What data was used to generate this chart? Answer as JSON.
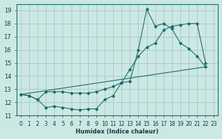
{
  "xlabel": "Humidex (Indice chaleur)",
  "bg_color": "#cce8e4",
  "grid_color": "#aacccc",
  "line_color": "#1a6b6b",
  "xlim": [
    -0.5,
    23.5
  ],
  "ylim": [
    11,
    19.5
  ],
  "yticks": [
    11,
    12,
    13,
    14,
    15,
    16,
    17,
    18,
    19
  ],
  "xticks": [
    0,
    1,
    2,
    3,
    4,
    5,
    6,
    7,
    8,
    9,
    10,
    11,
    12,
    13,
    14,
    15,
    16,
    17,
    18,
    19,
    20,
    21,
    22,
    23
  ],
  "series1_x": [
    0,
    1,
    2,
    3,
    4,
    5,
    6,
    7,
    8,
    9,
    10,
    11,
    12,
    13,
    14,
    15,
    16,
    17,
    18,
    19,
    20,
    21,
    22
  ],
  "series1_y": [
    12.6,
    12.5,
    12.2,
    11.6,
    11.7,
    11.6,
    11.5,
    11.4,
    11.5,
    11.5,
    12.2,
    12.5,
    13.5,
    13.6,
    16.0,
    19.1,
    17.8,
    18.0,
    17.6,
    16.5,
    16.1,
    15.5,
    14.7
  ],
  "series2_x": [
    0,
    1,
    2,
    3,
    4,
    5,
    6,
    7,
    8,
    9,
    10,
    11,
    12,
    13,
    14,
    15,
    16,
    17,
    18,
    19,
    20,
    21,
    22
  ],
  "series2_y": [
    12.6,
    12.5,
    12.2,
    12.8,
    12.8,
    12.8,
    12.7,
    12.7,
    12.7,
    12.8,
    13.0,
    13.2,
    13.5,
    14.5,
    15.5,
    16.2,
    16.5,
    17.5,
    17.8,
    17.9,
    18.0,
    18.0,
    15.0
  ],
  "series3_x": [
    0,
    22
  ],
  "series3_y": [
    12.6,
    14.7
  ]
}
